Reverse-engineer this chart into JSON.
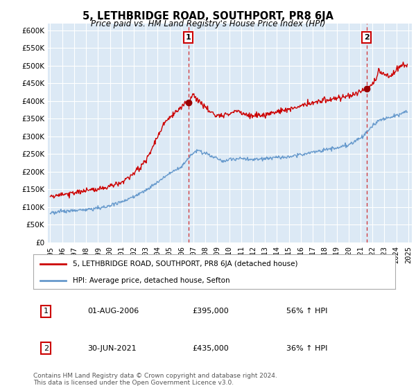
{
  "title": "5, LETHBRIDGE ROAD, SOUTHPORT, PR8 6JA",
  "subtitle": "Price paid vs. HM Land Registry's House Price Index (HPI)",
  "property_label": "5, LETHBRIDGE ROAD, SOUTHPORT, PR8 6JA (detached house)",
  "hpi_label": "HPI: Average price, detached house, Sefton",
  "property_color": "#cc0000",
  "hpi_color": "#6699cc",
  "transaction1_date": "01-AUG-2006",
  "transaction1_price": "£395,000",
  "transaction1_hpi": "56% ↑ HPI",
  "transaction2_date": "30-JUN-2021",
  "transaction2_price": "£435,000",
  "transaction2_hpi": "36% ↑ HPI",
  "vline1_x": 2006.58,
  "vline2_x": 2021.5,
  "marker1_x": 2006.58,
  "marker1_y": 395000,
  "marker2_x": 2021.5,
  "marker2_y": 435000,
  "ylim": [
    0,
    620000
  ],
  "xlim_start": 1994.8,
  "xlim_end": 2025.3,
  "footer": "Contains HM Land Registry data © Crown copyright and database right 2024.\nThis data is licensed under the Open Government Licence v3.0.",
  "background_color": "#ffffff",
  "plot_bg_color": "#dce9f5",
  "grid_color": "#ffffff"
}
